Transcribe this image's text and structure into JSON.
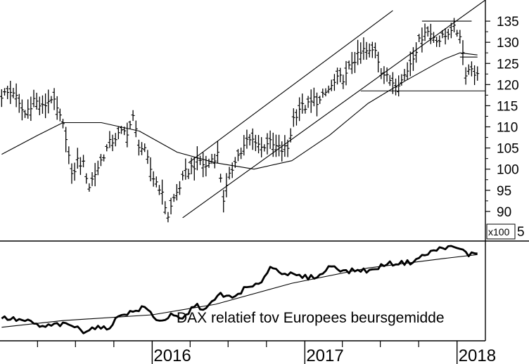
{
  "chart_data": [
    {
      "type": "ohlc-weekly",
      "panel": "price",
      "yticks": [
        90,
        95,
        100,
        105,
        110,
        115,
        120,
        125,
        130,
        135
      ],
      "ylim": [
        83,
        140
      ],
      "multiplier_label": "x100",
      "partial_tick_label": "5",
      "years": [
        "2016",
        "2017",
        "2018"
      ],
      "x_range": [
        "2015-01-01",
        "2018-03-10"
      ],
      "series": [
        {
          "kind": "weekly-bars",
          "points": [
            [
              "2015-01-05",
              117.5
            ],
            [
              "2015-02-02",
              118.5
            ],
            [
              "2015-02-16",
              115
            ],
            [
              "2015-03-02",
              113
            ],
            [
              "2015-03-23",
              116.5
            ],
            [
              "2015-04-13",
              114.5
            ],
            [
              "2015-05-04",
              117
            ],
            [
              "2015-05-18",
              114
            ],
            [
              "2015-06-08",
              108
            ],
            [
              "2015-06-22",
              98
            ],
            [
              "2015-07-06",
              102
            ],
            [
              "2015-07-20",
              101
            ],
            [
              "2015-08-03",
              96
            ],
            [
              "2015-08-17",
              99
            ],
            [
              "2015-09-07",
              103.5
            ],
            [
              "2015-09-21",
              106
            ],
            [
              "2015-10-05",
              107.5
            ],
            [
              "2015-10-19",
              108.5
            ],
            [
              "2015-11-02",
              109
            ],
            [
              "2015-11-16",
              112
            ],
            [
              "2015-11-30",
              106
            ],
            [
              "2015-12-14",
              104
            ],
            [
              "2016-01-04",
              98
            ],
            [
              "2016-01-18",
              96
            ],
            [
              "2016-02-08",
              89
            ],
            [
              "2016-02-22",
              93
            ],
            [
              "2016-03-07",
              96
            ],
            [
              "2016-03-21",
              99
            ],
            [
              "2016-04-11",
              101
            ],
            [
              "2016-04-25",
              102
            ],
            [
              "2016-05-09",
              100.5
            ],
            [
              "2016-05-23",
              102.5
            ],
            [
              "2016-06-06",
              103.5
            ],
            [
              "2016-06-20",
              93
            ],
            [
              "2016-07-04",
              98
            ],
            [
              "2016-07-18",
              102.5
            ],
            [
              "2016-08-01",
              104
            ],
            [
              "2016-08-15",
              106.5
            ],
            [
              "2016-09-05",
              107
            ],
            [
              "2016-09-19",
              105
            ],
            [
              "2016-10-03",
              106.5
            ],
            [
              "2016-10-17",
              105.5
            ],
            [
              "2016-11-07",
              104.5
            ],
            [
              "2016-11-21",
              105
            ],
            [
              "2016-12-05",
              112
            ],
            [
              "2016-12-19",
              114.5
            ],
            [
              "2017-01-09",
              115
            ],
            [
              "2017-01-23",
              116.5
            ],
            [
              "2017-02-06",
              116
            ],
            [
              "2017-02-20",
              118
            ],
            [
              "2017-03-06",
              119.5
            ],
            [
              "2017-03-20",
              121
            ],
            [
              "2017-04-10",
              122
            ],
            [
              "2017-04-24",
              125.5
            ],
            [
              "2017-05-08",
              126.5
            ],
            [
              "2017-05-22",
              128
            ],
            [
              "2017-06-05",
              127.5
            ],
            [
              "2017-06-19",
              128.5
            ],
            [
              "2017-07-03",
              123.5
            ],
            [
              "2017-07-17",
              121.5
            ],
            [
              "2017-08-07",
              120.5
            ],
            [
              "2017-08-21",
              121
            ],
            [
              "2017-09-04",
              123.5
            ],
            [
              "2017-09-18",
              127
            ],
            [
              "2017-10-02",
              130
            ],
            [
              "2017-10-16",
              133
            ],
            [
              "2017-11-06",
              131.5
            ],
            [
              "2017-11-20",
              130.5
            ],
            [
              "2017-12-04",
              131.5
            ],
            [
              "2017-12-18",
              133.5
            ],
            [
              "2018-01-08",
              132
            ],
            [
              "2018-01-22",
              123
            ],
            [
              "2018-02-05",
              124
            ],
            [
              "2018-02-19",
              122
            ]
          ]
        },
        {
          "kind": "moving-average",
          "points": [
            [
              "2015-01-05",
              103.5
            ],
            [
              "2015-04-01",
              108
            ],
            [
              "2015-06-01",
              111
            ],
            [
              "2015-09-01",
              111
            ],
            [
              "2015-12-01",
              109
            ],
            [
              "2016-03-01",
              104
            ],
            [
              "2016-06-01",
              101.5
            ],
            [
              "2016-09-01",
              100
            ],
            [
              "2016-12-01",
              102
            ],
            [
              "2017-03-01",
              108
            ],
            [
              "2017-06-01",
              115.5
            ],
            [
              "2017-09-01",
              121
            ],
            [
              "2017-12-01",
              126
            ],
            [
              "2018-01-08",
              127.5
            ],
            [
              "2018-02-19",
              127
            ]
          ]
        }
      ],
      "trendlines": [
        {
          "name": "lower-channel",
          "points": [
            [
              "2016-03-14",
              88.5
            ],
            [
              "2018-03-10",
              140
            ]
          ]
        },
        {
          "name": "upper-channel",
          "points": [
            [
              "2016-03-28",
              101.5
            ],
            [
              "2017-07-31",
              137.5
            ]
          ]
        },
        {
          "name": "top-horizontal",
          "points": [
            [
              "2017-10-09",
              135
            ],
            [
              "2018-02-05",
              135
            ]
          ]
        },
        {
          "name": "support-horizontal",
          "points": [
            [
              "2017-05-15",
              118.5
            ],
            [
              "2018-03-10",
              118.5
            ]
          ]
        },
        {
          "name": "resistance-short",
          "points": [
            [
              "2018-01-08",
              126.5
            ],
            [
              "2018-02-19",
              126.5
            ]
          ]
        }
      ]
    },
    {
      "type": "line",
      "panel": "relative-strength",
      "annotation": "DAX relatief tov Europees beursgemidde",
      "ylim": [
        0,
        100
      ],
      "series": [
        {
          "kind": "relative-strength",
          "points": [
            [
              "2015-01-05",
              22
            ],
            [
              "2015-02-09",
              20
            ],
            [
              "2015-03-09",
              18
            ],
            [
              "2015-04-13",
              12
            ],
            [
              "2015-05-18",
              15
            ],
            [
              "2015-06-22",
              14
            ],
            [
              "2015-07-20",
              8
            ],
            [
              "2015-08-17",
              12
            ],
            [
              "2015-09-14",
              10
            ],
            [
              "2015-10-19",
              26
            ],
            [
              "2015-11-16",
              28
            ],
            [
              "2015-12-14",
              33
            ],
            [
              "2016-01-18",
              18
            ],
            [
              "2016-02-15",
              24
            ],
            [
              "2016-03-14",
              20
            ],
            [
              "2016-04-11",
              35
            ],
            [
              "2016-05-09",
              31
            ],
            [
              "2016-06-13",
              47
            ],
            [
              "2016-07-11",
              42
            ],
            [
              "2016-08-08",
              52
            ],
            [
              "2016-09-12",
              56
            ],
            [
              "2016-10-10",
              75
            ],
            [
              "2016-11-07",
              70
            ],
            [
              "2016-12-05",
              66
            ],
            [
              "2017-01-09",
              64
            ],
            [
              "2017-02-06",
              66
            ],
            [
              "2017-03-06",
              77
            ],
            [
              "2017-04-10",
              70
            ],
            [
              "2017-05-08",
              72
            ],
            [
              "2017-06-12",
              71
            ],
            [
              "2017-07-10",
              78
            ],
            [
              "2017-08-07",
              79
            ],
            [
              "2017-09-11",
              80
            ],
            [
              "2017-10-09",
              86
            ],
            [
              "2017-11-06",
              92
            ],
            [
              "2017-12-04",
              96
            ],
            [
              "2018-01-08",
              94
            ],
            [
              "2018-01-29",
              88
            ],
            [
              "2018-02-19",
              90
            ]
          ]
        },
        {
          "kind": "moving-average",
          "points": [
            [
              "2015-01-05",
              12
            ],
            [
              "2015-06-01",
              19
            ],
            [
              "2016-01-01",
              25
            ],
            [
              "2016-06-01",
              36
            ],
            [
              "2016-12-01",
              58
            ],
            [
              "2017-06-01",
              74
            ],
            [
              "2017-12-01",
              84
            ],
            [
              "2018-02-19",
              88
            ]
          ]
        }
      ]
    }
  ]
}
